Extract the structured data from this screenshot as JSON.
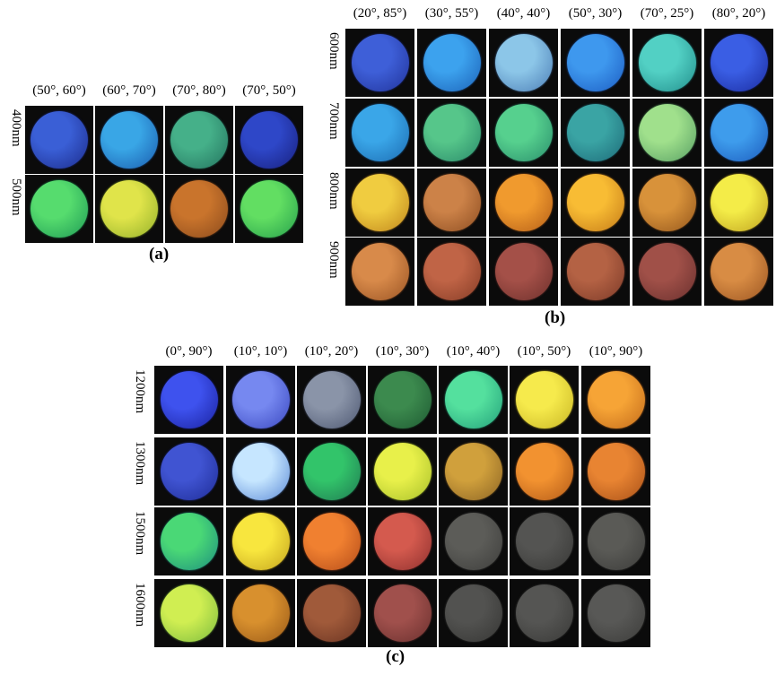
{
  "panels": [
    {
      "id": "a",
      "caption": "(a)",
      "columns": [
        "(50°, 60°)",
        "(60°, 70°)",
        "(70°, 80°)",
        "(70°, 50°)"
      ],
      "rows": [
        {
          "label": "400nm",
          "colors": [
            [
              "#3a5fd6",
              "#1c2c8c"
            ],
            [
              "#39a6e6",
              "#1a5cae"
            ],
            [
              "#45b089",
              "#23735e"
            ],
            [
              "#2e47c8",
              "#18207e"
            ]
          ]
        },
        {
          "label": "500nm",
          "colors": [
            [
              "#56dc6e",
              "#1e9a55"
            ],
            [
              "#e0e44a",
              "#93b12a"
            ],
            [
              "#c9742c",
              "#8a4a1c"
            ],
            [
              "#62de62",
              "#26a04c"
            ]
          ]
        }
      ]
    },
    {
      "id": "b",
      "caption": "(b)",
      "columns": [
        "(20°, 85°)",
        "(30°, 55°)",
        "(40°, 40°)",
        "(50°, 30°)",
        "(70°, 25°)",
        "(80°, 20°)"
      ],
      "rows": [
        {
          "label": "600nm",
          "colors": [
            [
              "#3e5fd8",
              "#21339a"
            ],
            [
              "#3ca2ee",
              "#1c62b8"
            ],
            [
              "#8cc6e8",
              "#4c7eb6"
            ],
            [
              "#3e98ee",
              "#1c5cc2"
            ],
            [
              "#52d0c4",
              "#228e8c"
            ],
            [
              "#3a5ee4",
              "#1b2ca0"
            ]
          ]
        },
        {
          "label": "700nm",
          "colors": [
            [
              "#3aa6e8",
              "#1c6cb2"
            ],
            [
              "#56c68a",
              "#2a8a6a"
            ],
            [
              "#56d08e",
              "#2a8e6c"
            ],
            [
              "#3aa4a4",
              "#1d6a78"
            ],
            [
              "#a0e08c",
              "#58a064"
            ],
            [
              "#3e9cec",
              "#1c5cbe"
            ]
          ]
        },
        {
          "label": "800nm",
          "colors": [
            [
              "#f0cc40",
              "#c0861c"
            ],
            [
              "#cc8248",
              "#8e4e22"
            ],
            [
              "#f09a2e",
              "#b45e18"
            ],
            [
              "#f8bc34",
              "#c47a18"
            ],
            [
              "#d8923a",
              "#94561c"
            ],
            [
              "#f4ec48",
              "#c0a420"
            ]
          ]
        },
        {
          "label": "900nm",
          "colors": [
            [
              "#d88a4a",
              "#9a5424"
            ],
            [
              "#c06446",
              "#863c26"
            ],
            [
              "#a45048",
              "#6e302c"
            ],
            [
              "#b46244",
              "#7c3a28"
            ],
            [
              "#a05048",
              "#6a302e"
            ],
            [
              "#d88c44",
              "#9c5622"
            ]
          ]
        }
      ]
    },
    {
      "id": "c",
      "caption": "(c)",
      "columns": [
        "(0°, 90°)",
        "(10°, 10°)",
        "(10°, 20°)",
        "(10°, 30°)",
        "(10°, 40°)",
        "(10°, 50°)",
        "(10°, 90°)"
      ],
      "rows": [
        {
          "label": "1200nm",
          "colors": [
            [
              "#3e52ee",
              "#1a22a0"
            ],
            [
              "#7688f0",
              "#3a48c0"
            ],
            [
              "#8a94a8",
              "#4e5872"
            ],
            [
              "#3c8a4e",
              "#1e5a32"
            ],
            [
              "#54e09e",
              "#23a07a"
            ],
            [
              "#f6ea4c",
              "#c8b624"
            ],
            [
              "#f6a436",
              "#c26a1a"
            ]
          ]
        },
        {
          "label": "1300nm",
          "colors": [
            [
              "#4054d2",
              "#1e2c96"
            ],
            [
              "#c6e6ff",
              "#5c8ad6"
            ],
            [
              "#32c46a",
              "#207a52"
            ],
            [
              "#e8f04a",
              "#a8c02a"
            ],
            [
              "#d0a03c",
              "#8c6424"
            ],
            [
              "#f29230",
              "#b25a18"
            ],
            [
              "#e88432",
              "#a85018"
            ]
          ]
        },
        {
          "label": "1500nm",
          "colors": [
            [
              "#4ad876",
              "#1c8e7e"
            ],
            [
              "#f8e63e",
              "#c4a41e"
            ],
            [
              "#f08030",
              "#b44c1a"
            ],
            [
              "#d45a4e",
              "#8e302e"
            ],
            [
              "#5c5c58",
              "#3e3e3c"
            ],
            [
              "#545452",
              "#383836"
            ],
            [
              "#5a5a56",
              "#3c3c3a"
            ]
          ]
        },
        {
          "label": "1600nm",
          "colors": [
            [
              "#d0ee52",
              "#7cbc3e"
            ],
            [
              "#d8902e",
              "#9a5a18"
            ],
            [
              "#a05a3a",
              "#6a3422"
            ],
            [
              "#a0504c",
              "#6a302e"
            ],
            [
              "#525250",
              "#363634"
            ],
            [
              "#555553",
              "#393937"
            ],
            [
              "#585856",
              "#3c3c3a"
            ]
          ]
        }
      ]
    }
  ]
}
